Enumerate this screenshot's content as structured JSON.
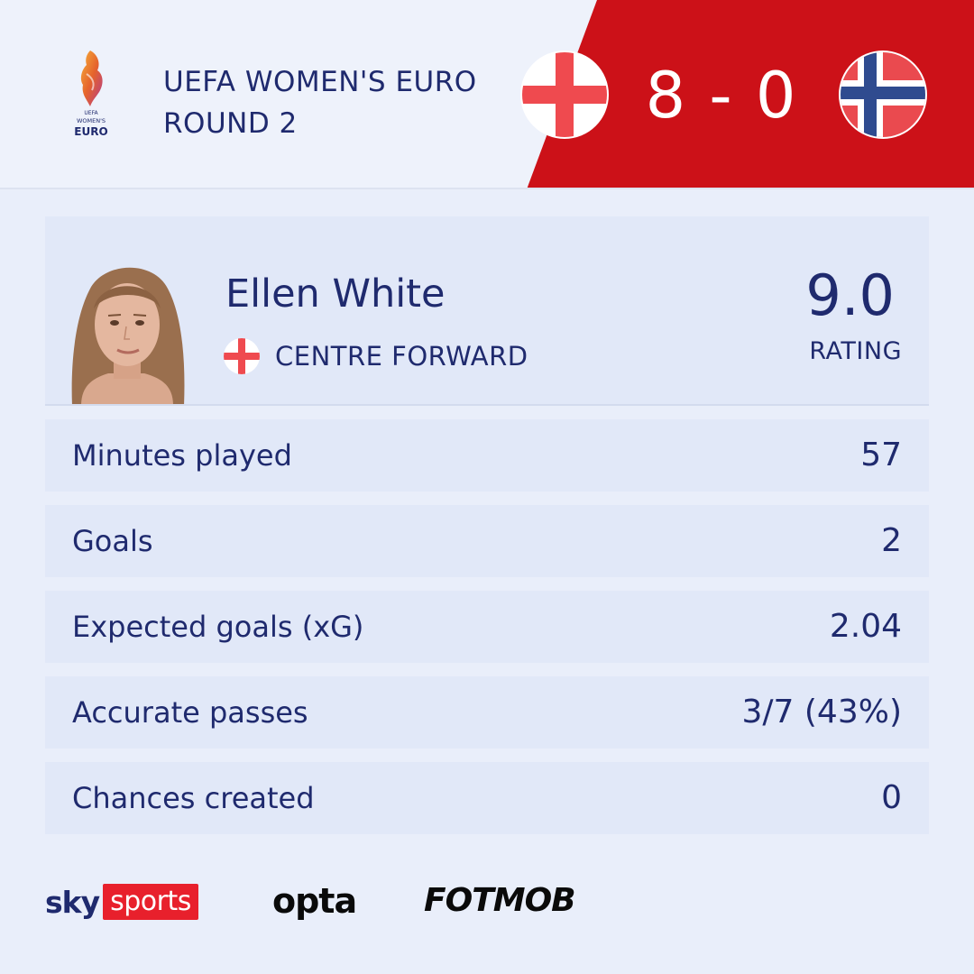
{
  "competition": {
    "name": "UEFA WOMEN'S EURO",
    "round": "ROUND 2",
    "logo_icon": "womens-euro-trophy-icon",
    "logo_text_uefa": "UEFA",
    "logo_text_womens": "WOMEN'S",
    "logo_text_euro": "EURO"
  },
  "match": {
    "score": "8 - 0",
    "home_flag": "england-flag-icon",
    "away_flag": "norway-flag-icon",
    "accent_color": "#cc1118"
  },
  "player": {
    "name": "Ellen White",
    "position": "CENTRE FORWARD",
    "nation_flag": "england-flag-icon",
    "rating_value": "9.0",
    "rating_label": "RATING"
  },
  "stats": [
    {
      "label": "Minutes played",
      "value": "57"
    },
    {
      "label": "Goals",
      "value": "2"
    },
    {
      "label": "Expected goals (xG)",
      "value": "2.04"
    },
    {
      "label": "Accurate passes",
      "value": "3/7 (43%)"
    },
    {
      "label": "Chances created",
      "value": "0"
    }
  ],
  "footer": {
    "sky": "sky",
    "sports": "sports",
    "opta": "opta",
    "fotmob": "FOTMOB"
  }
}
